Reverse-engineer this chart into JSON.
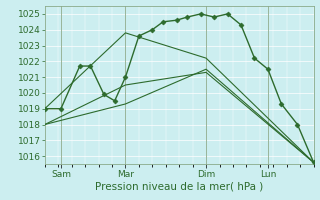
{
  "title": "",
  "xlabel": "Pression niveau de la mer( hPa )",
  "bg_color": "#cceef0",
  "grid_color": "#ffffff",
  "line_color": "#2d6b2d",
  "ylim": [
    1015.5,
    1025.5
  ],
  "yticks": [
    1016,
    1017,
    1018,
    1019,
    1020,
    1021,
    1022,
    1023,
    1024,
    1025
  ],
  "xlim": [
    0,
    100
  ],
  "xtick_labels": [
    "Sam",
    "Mar",
    "Dim",
    "Lun"
  ],
  "xtick_positions": [
    6,
    30,
    60,
    83
  ],
  "vlines": [
    6,
    30,
    60,
    83
  ],
  "vline_color": "#8aaa8a",
  "font_color": "#2d6b2d",
  "font_size": 6.5,
  "series": [
    {
      "x": [
        0,
        6,
        13,
        17,
        22,
        26,
        30,
        35,
        40,
        44,
        49,
        53,
        58,
        63,
        68,
        73,
        78,
        83,
        88,
        94,
        100
      ],
      "y": [
        1019.0,
        1019.0,
        1021.7,
        1021.7,
        1019.9,
        1019.5,
        1021.0,
        1023.6,
        1024.0,
        1024.5,
        1024.6,
        1024.8,
        1025.0,
        1024.8,
        1025.0,
        1024.3,
        1022.2,
        1021.5,
        1019.3,
        1018.0,
        1015.6
      ],
      "marker": "D",
      "markersize": 2.5,
      "linewidth": 1.0
    },
    {
      "x": [
        0,
        30,
        60,
        100
      ],
      "y": [
        1019.0,
        1023.8,
        1022.2,
        1015.6
      ],
      "marker": null,
      "linewidth": 0.8
    },
    {
      "x": [
        0,
        30,
        60,
        100
      ],
      "y": [
        1018.0,
        1020.5,
        1021.3,
        1015.6
      ],
      "marker": null,
      "linewidth": 0.8
    },
    {
      "x": [
        0,
        30,
        60,
        100
      ],
      "y": [
        1018.0,
        1019.3,
        1021.5,
        1015.6
      ],
      "marker": null,
      "linewidth": 0.8
    }
  ]
}
